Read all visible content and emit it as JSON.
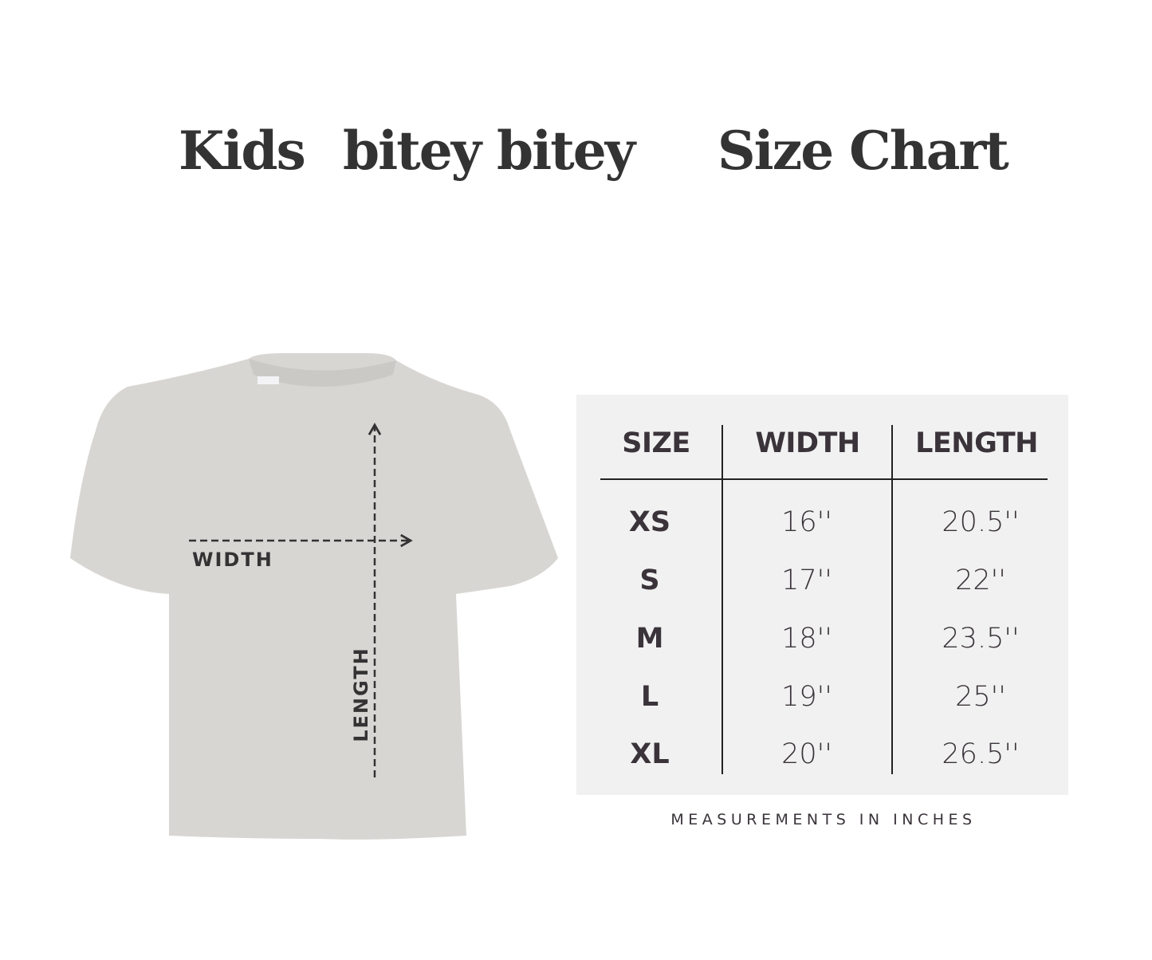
{
  "title": {
    "part1": "Kids",
    "part2": "bitey bitey",
    "part3": "Size Chart"
  },
  "diagram": {
    "width_label": "WIDTH",
    "length_label": "LENGTH",
    "shirt_color": "#d8d6d3",
    "arrow_color": "#333333"
  },
  "table": {
    "headers": [
      "SIZE",
      "WIDTH",
      "LENGTH"
    ],
    "rows": [
      {
        "size": "XS",
        "width": "16''",
        "length": "20.5''"
      },
      {
        "size": "S",
        "width": "17''",
        "length": "22''"
      },
      {
        "size": "M",
        "width": "18''",
        "length": "23.5''"
      },
      {
        "size": "L",
        "width": "19''",
        "length": "25''"
      },
      {
        "size": "XL",
        "width": "20''",
        "length": "26.5''"
      }
    ],
    "background": "#f1f1f1"
  },
  "footer": "MEASUREMENTS IN INCHES"
}
